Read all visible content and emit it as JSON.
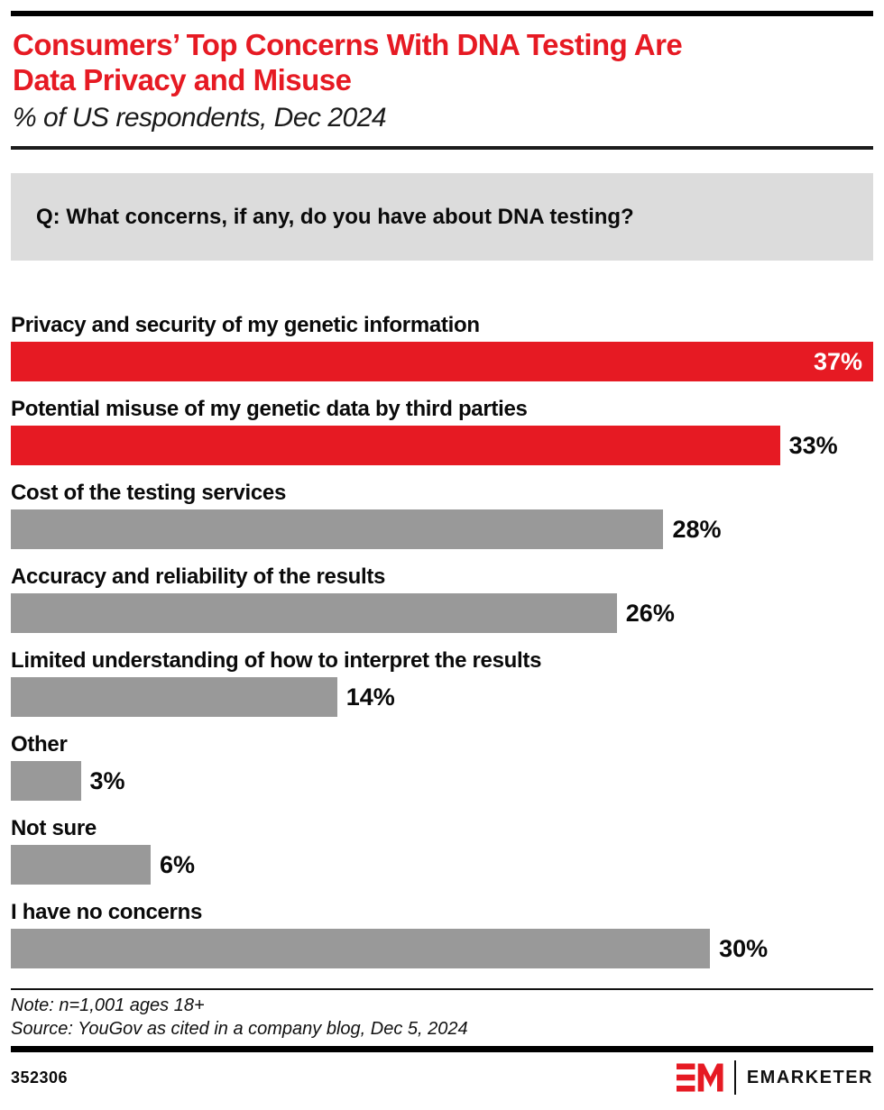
{
  "header": {
    "title_lines": [
      "Consumers’ Top Concerns With DNA Testing Are",
      "Data Privacy and Misuse"
    ],
    "subtitle": "% of US respondents, Dec 2024"
  },
  "question": "Q: What concerns, if any, do you have about DNA testing?",
  "chart_data": {
    "type": "bar",
    "orientation": "horizontal",
    "title": "Consumers’ Top Concerns With DNA Testing Are Data Privacy and Misuse",
    "subtitle": "% of US respondents, Dec 2024",
    "categories": [
      "Privacy and security of my genetic information",
      "Potential misuse of my genetic data by third parties",
      "Cost of the testing services",
      "Accuracy and reliability of the results",
      "Limited understanding of how to interpret the results",
      "Other",
      "Not sure",
      "I have no concerns"
    ],
    "values": [
      37,
      33,
      28,
      26,
      14,
      3,
      6,
      30
    ],
    "value_labels": [
      "37%",
      "33%",
      "28%",
      "26%",
      "14%",
      "3%",
      "6%",
      "30%"
    ],
    "bar_colors": [
      "#E61A23",
      "#E61A23",
      "#999999",
      "#999999",
      "#999999",
      "#999999",
      "#999999",
      "#999999"
    ],
    "value_label_position": [
      "inside",
      "outside",
      "outside",
      "outside",
      "outside",
      "outside",
      "outside",
      "outside"
    ],
    "xlim": [
      0,
      37
    ],
    "unit": "%",
    "grid": false,
    "legend": "none"
  },
  "footer": {
    "note": "Note: n=1,001 ages 18+",
    "source": "Source: YouGov as cited in a company blog, Dec 5, 2024",
    "chart_id": "352306",
    "brand_wordmark": "EMARKETER"
  },
  "colors": {
    "accent_red": "#E61A23",
    "bar_gray": "#999999",
    "question_bg": "#DCDCDC",
    "rule_black": "#000000"
  }
}
